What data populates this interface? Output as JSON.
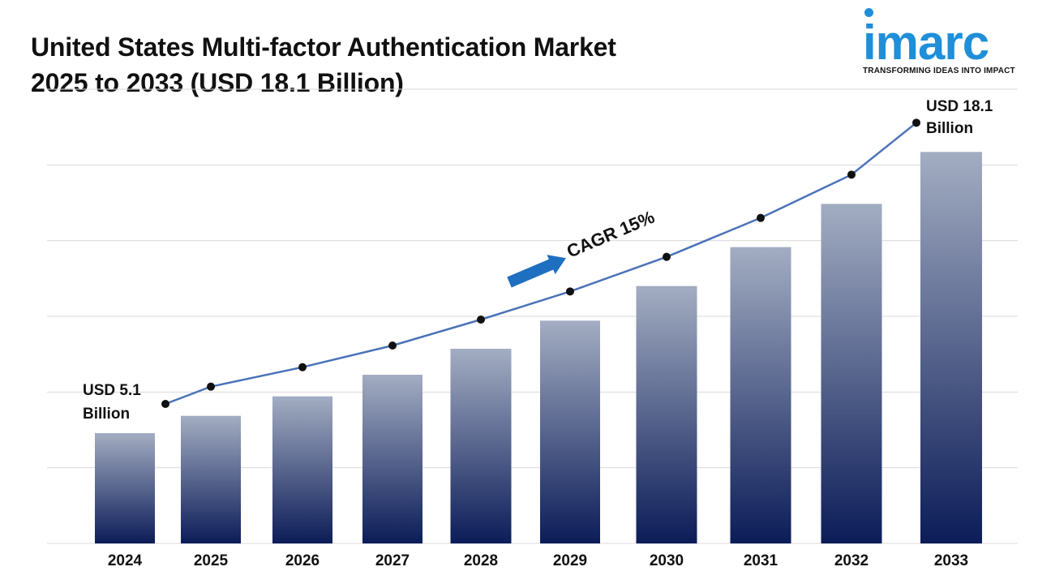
{
  "title": {
    "line1": "United States Multi-factor Authentication Market",
    "line2": "2025 to 2033 (USD 18.1 Billion)"
  },
  "logo": {
    "text": "imarc",
    "tagline": "TRANSFORMING IDEAS INTO IMPACT"
  },
  "chart_data": {
    "type": "bar",
    "categories": [
      "2024",
      "2025",
      "2026",
      "2027",
      "2028",
      "2029",
      "2030",
      "2031",
      "2032",
      "2033"
    ],
    "values": [
      5.1,
      5.9,
      6.8,
      7.8,
      9.0,
      10.3,
      11.9,
      13.7,
      15.7,
      18.1
    ],
    "ylim": [
      0,
      21
    ],
    "grid": true,
    "bar_gradient": [
      "#a3adc2",
      "#0c1c58"
    ],
    "line_color": "#4a72b8",
    "arrow_color": "#1f6fc0",
    "annotations": {
      "start_label_line1": "USD 5.1",
      "start_label_line2": "Billion",
      "end_label_line1": "USD 18.1",
      "end_label_line2": "Billion",
      "cagr": "CAGR 15%"
    }
  }
}
